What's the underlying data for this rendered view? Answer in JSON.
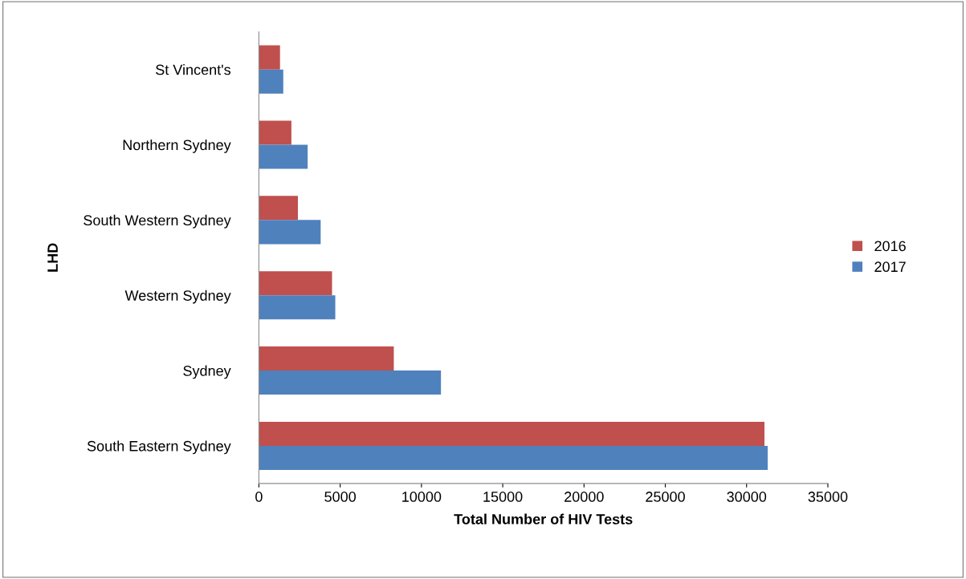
{
  "chart_data": {
    "type": "bar",
    "orientation": "horizontal",
    "xlabel": "Total Number of HIV Tests",
    "ylabel": "LHD",
    "categories": [
      "St Vincent's",
      "Northern Sydney",
      "South Western Sydney",
      "Western Sydney",
      "Sydney",
      "South Eastern Sydney"
    ],
    "series": [
      {
        "name": "2016",
        "color": "#c0504d",
        "values": [
          1300,
          2000,
          2400,
          4500,
          8300,
          31100
        ]
      },
      {
        "name": "2017",
        "color": "#4f81bd",
        "values": [
          1500,
          3000,
          3800,
          4700,
          11200,
          31300
        ]
      }
    ],
    "xlim": [
      0,
      35000
    ],
    "xticks": [
      0,
      5000,
      10000,
      15000,
      20000,
      25000,
      30000,
      35000
    ],
    "grid": false,
    "legend": "right"
  }
}
